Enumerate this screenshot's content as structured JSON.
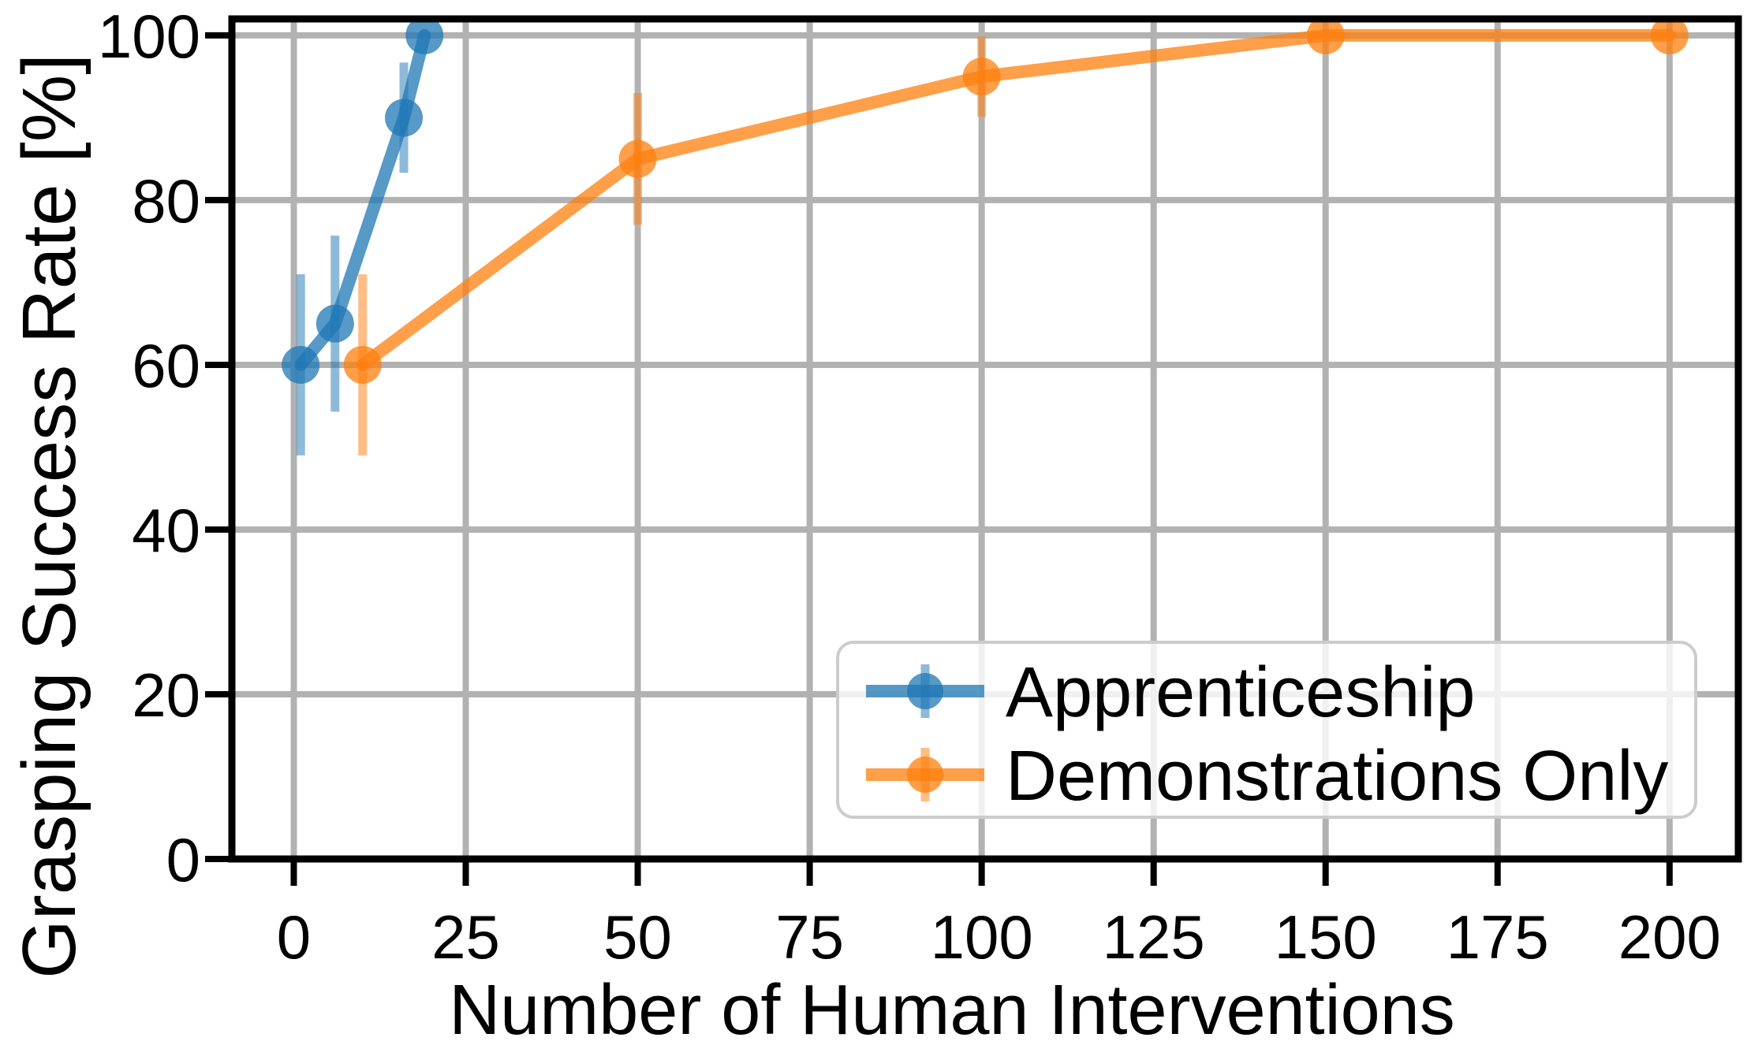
{
  "page": {
    "background": "#ffffff"
  },
  "chart_data": {
    "type": "line",
    "title": "",
    "xlabel": "Number of Human Interventions",
    "ylabel": "Grasping Success Rate [%]",
    "xlim": [
      -9,
      210
    ],
    "ylim": [
      0,
      102
    ],
    "xticks": [
      0,
      25,
      50,
      75,
      100,
      125,
      150,
      175,
      200
    ],
    "yticks": [
      0,
      20,
      40,
      60,
      80,
      100
    ],
    "grid": true,
    "grid_color": "#b2b2b2",
    "axis_color": "#000000",
    "legend": {
      "position": "lower right",
      "frame_color": "#cccccc",
      "frame_fill_color": "#ffffff",
      "frame_fill_alpha": 0.8,
      "entries": [
        "Apprenticeship",
        "Demonstrations Only"
      ]
    },
    "series": [
      {
        "name": "Apprenticeship",
        "color": "#1f77b4",
        "x": [
          1,
          6,
          16,
          19
        ],
        "y": [
          60,
          65,
          90,
          100
        ],
        "yerr": [
          11.0,
          10.7,
          6.7,
          0
        ]
      },
      {
        "name": "Demonstrations Only",
        "color": "#ff7f0e",
        "x": [
          10,
          50,
          100,
          150,
          200
        ],
        "y": [
          60,
          85,
          95,
          100,
          100
        ],
        "yerr": [
          11.0,
          8.0,
          4.9,
          0,
          0
        ]
      }
    ],
    "style": {
      "line_alpha": 0.75,
      "errorbar_alpha": 0.5,
      "line_width": 16,
      "errorbar_width": 11,
      "marker_radius": 24
    }
  }
}
